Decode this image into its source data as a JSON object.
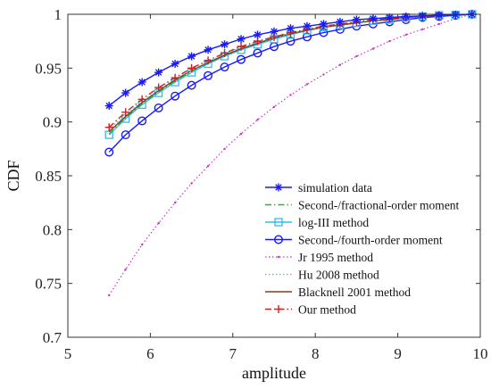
{
  "chart_data": {
    "type": "line",
    "title": "",
    "xlabel": "amplitude",
    "ylabel": "CDF",
    "xlim": [
      5,
      10
    ],
    "ylim": [
      0.7,
      1
    ],
    "xticks": [
      5,
      6,
      7,
      8,
      9,
      10
    ],
    "yticks": [
      0.7,
      0.75,
      0.8,
      0.85,
      0.9,
      0.95,
      1
    ],
    "xtick_labels": [
      "5",
      "6",
      "7",
      "8",
      "9",
      "10"
    ],
    "ytick_labels": [
      "0.7",
      "0.75",
      "0.8",
      "0.85",
      "0.9",
      "0.95",
      "1"
    ],
    "grid": false,
    "legend_position": "bottom-right",
    "x": [
      5.5,
      5.7,
      5.9,
      6.1,
      6.3,
      6.5,
      6.7,
      6.9,
      7.1,
      7.3,
      7.5,
      7.7,
      7.9,
      8.1,
      8.3,
      8.5,
      8.7,
      8.9,
      9.1,
      9.3,
      9.5,
      9.7,
      9.9
    ],
    "series": [
      {
        "name": "simulation data",
        "color": "#1a1aff",
        "line": "solid",
        "marker": "asterisk",
        "values": [
          0.915,
          0.927,
          0.937,
          0.946,
          0.954,
          0.961,
          0.967,
          0.972,
          0.977,
          0.981,
          0.984,
          0.987,
          0.989,
          0.991,
          0.993,
          0.995,
          0.996,
          0.997,
          0.998,
          0.9985,
          0.999,
          0.9995,
          1.0
        ]
      },
      {
        "name": "Second-/fractional-order moment",
        "color": "#22bb22",
        "line": "dashdot",
        "marker": "none",
        "values": [
          0.889,
          0.904,
          0.917,
          0.928,
          0.938,
          0.947,
          0.955,
          0.962,
          0.968,
          0.973,
          0.978,
          0.982,
          0.985,
          0.988,
          0.99,
          0.992,
          0.994,
          0.995,
          0.997,
          0.998,
          0.999,
          0.9995,
          1.0
        ]
      },
      {
        "name": "log-III method",
        "color": "#33bbee",
        "line": "solid",
        "marker": "square",
        "values": [
          0.888,
          0.903,
          0.916,
          0.927,
          0.937,
          0.946,
          0.954,
          0.961,
          0.967,
          0.972,
          0.977,
          0.981,
          0.985,
          0.988,
          0.99,
          0.992,
          0.994,
          0.995,
          0.997,
          0.998,
          0.999,
          0.9995,
          1.0
        ]
      },
      {
        "name": "Second-/fourth-order moment",
        "color": "#1a1aff",
        "line": "solid",
        "marker": "circle",
        "values": [
          0.872,
          0.888,
          0.901,
          0.913,
          0.924,
          0.934,
          0.943,
          0.951,
          0.958,
          0.964,
          0.97,
          0.975,
          0.979,
          0.983,
          0.986,
          0.989,
          0.991,
          0.993,
          0.995,
          0.997,
          0.998,
          0.999,
          1.0
        ]
      },
      {
        "name": "Jr 1995 method",
        "color": "#cc33cc",
        "line": "dotted",
        "marker": "dot",
        "values": [
          0.739,
          0.763,
          0.786,
          0.806,
          0.825,
          0.843,
          0.859,
          0.875,
          0.889,
          0.902,
          0.914,
          0.925,
          0.935,
          0.944,
          0.953,
          0.961,
          0.968,
          0.975,
          0.981,
          0.986,
          0.991,
          0.996,
          1.0
        ]
      },
      {
        "name": "Hu 2008 method",
        "color": "#22ccdd",
        "line": "dotted",
        "marker": "none",
        "values": [
          0.893,
          0.907,
          0.919,
          0.93,
          0.94,
          0.948,
          0.956,
          0.963,
          0.969,
          0.974,
          0.978,
          0.982,
          0.986,
          0.988,
          0.991,
          0.993,
          0.994,
          0.996,
          0.997,
          0.998,
          0.999,
          0.9995,
          1.0
        ]
      },
      {
        "name": "Blacknell 2001 method",
        "color": "#8b3a1a",
        "line": "solid",
        "marker": "none",
        "values": [
          0.891,
          0.905,
          0.918,
          0.929,
          0.939,
          0.948,
          0.955,
          0.962,
          0.968,
          0.973,
          0.978,
          0.982,
          0.985,
          0.988,
          0.99,
          0.992,
          0.994,
          0.995,
          0.997,
          0.998,
          0.999,
          0.9995,
          1.0
        ]
      },
      {
        "name": "Our method",
        "color": "#cc2222",
        "line": "dashdot",
        "marker": "plus",
        "values": [
          0.895,
          0.909,
          0.921,
          0.932,
          0.941,
          0.95,
          0.957,
          0.964,
          0.97,
          0.975,
          0.979,
          0.983,
          0.986,
          0.989,
          0.991,
          0.993,
          0.995,
          0.996,
          0.997,
          0.998,
          0.999,
          0.9995,
          1.0
        ]
      }
    ]
  }
}
